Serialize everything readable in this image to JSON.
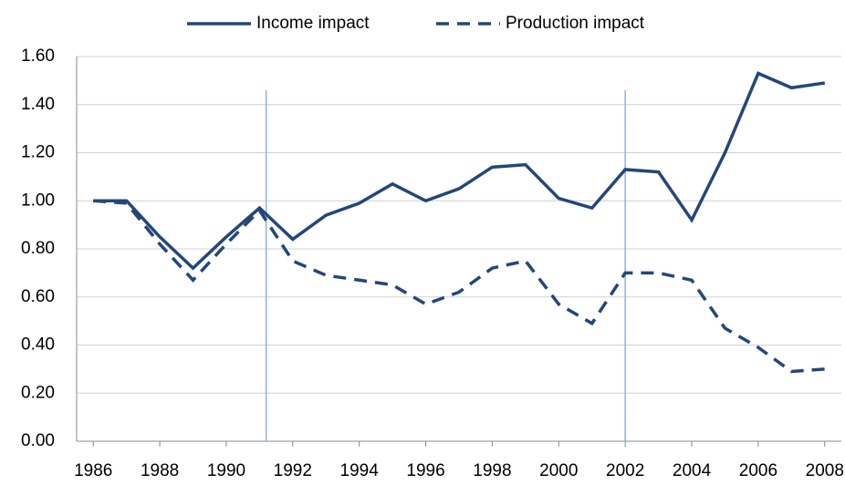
{
  "chart_data": {
    "type": "line",
    "x": [
      1986,
      1987,
      1988,
      1989,
      1990,
      1991,
      1992,
      1993,
      1994,
      1995,
      1996,
      1997,
      1998,
      1999,
      2000,
      2001,
      2002,
      2003,
      2004,
      2005,
      2006,
      2007,
      2008
    ],
    "series": [
      {
        "name": "Income impact",
        "color": "#24467a",
        "line_style": "solid",
        "values": [
          1.0,
          1.0,
          0.85,
          0.72,
          0.85,
          0.97,
          0.84,
          0.94,
          0.99,
          1.07,
          1.0,
          1.05,
          1.14,
          1.15,
          1.01,
          0.97,
          1.13,
          1.12,
          0.92,
          1.2,
          1.53,
          1.47,
          1.49
        ]
      },
      {
        "name": "Production impact",
        "color": "#24467a",
        "line_style": "dashed",
        "values": [
          1.0,
          0.99,
          0.82,
          0.67,
          0.82,
          0.96,
          0.75,
          0.69,
          0.67,
          0.65,
          0.57,
          0.62,
          0.72,
          0.75,
          0.57,
          0.49,
          0.7,
          0.7,
          0.67,
          0.47,
          0.39,
          0.29,
          0.3
        ]
      }
    ],
    "xlim": [
      1985.5,
      2008.5
    ],
    "xticks": [
      1986,
      1988,
      1990,
      1992,
      1994,
      1996,
      1998,
      2000,
      2002,
      2004,
      2006,
      2008
    ],
    "ylim": [
      0,
      1.6
    ],
    "yticks": [
      {
        "value": 0,
        "label": "0.00"
      },
      {
        "value": 0.2,
        "label": "0.20"
      },
      {
        "value": 0.4,
        "label": "0.40"
      },
      {
        "value": 0.6,
        "label": "0.60"
      },
      {
        "value": 0.8,
        "label": "0.80"
      },
      {
        "value": 1.0,
        "label": "1.00"
      },
      {
        "value": 1.2,
        "label": "1.20"
      },
      {
        "value": 1.4,
        "label": "1.40"
      },
      {
        "value": 1.6,
        "label": "1.60"
      }
    ],
    "grid": true,
    "legend": "top",
    "vlines": [
      1991.2,
      2002.0
    ],
    "vline_color": "#8db3e2"
  }
}
